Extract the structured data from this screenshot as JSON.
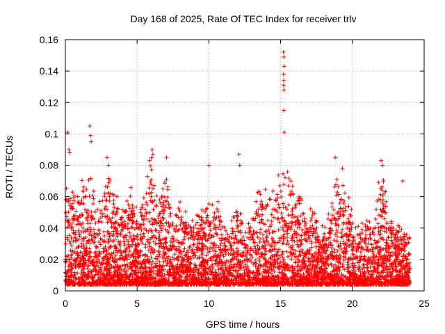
{
  "chart_data": {
    "type": "scatter",
    "title": "Day 168 of 2025, Rate Of TEC Index for receiver trlv",
    "xlabel": "GPS time / hours",
    "ylabel": "ROTI / TECUs",
    "xlim": [
      0,
      25
    ],
    "ylim": [
      0,
      0.16
    ],
    "xticks": [
      0,
      5,
      10,
      15,
      20,
      25
    ],
    "yticks": [
      0,
      0.02,
      0.04,
      0.06,
      0.08,
      0.1,
      0.12,
      0.14,
      0.16
    ],
    "ytick_labels": [
      "0",
      "0.02",
      "0.04",
      "0.06",
      "0.08",
      "0.1",
      "0.12",
      "0.14",
      "0.16"
    ],
    "grid": true,
    "marker": "+",
    "color": "#ff0000",
    "data_range_x": [
      0,
      24
    ],
    "notable_points": [
      {
        "x": 0.15,
        "y": 0.101
      },
      {
        "x": 0.25,
        "y": 0.09
      },
      {
        "x": 0.3,
        "y": 0.088
      },
      {
        "x": 1.7,
        "y": 0.105
      },
      {
        "x": 1.75,
        "y": 0.099
      },
      {
        "x": 1.8,
        "y": 0.095
      },
      {
        "x": 2.9,
        "y": 0.085
      },
      {
        "x": 3.0,
        "y": 0.08
      },
      {
        "x": 6.05,
        "y": 0.09
      },
      {
        "x": 6.1,
        "y": 0.087
      },
      {
        "x": 7.05,
        "y": 0.085
      },
      {
        "x": 10.0,
        "y": 0.08
      },
      {
        "x": 12.1,
        "y": 0.087
      },
      {
        "x": 12.15,
        "y": 0.08
      },
      {
        "x": 15.2,
        "y": 0.152
      },
      {
        "x": 15.22,
        "y": 0.149
      },
      {
        "x": 15.25,
        "y": 0.143
      },
      {
        "x": 15.2,
        "y": 0.138
      },
      {
        "x": 15.22,
        "y": 0.134
      },
      {
        "x": 15.2,
        "y": 0.131
      },
      {
        "x": 15.22,
        "y": 0.128
      },
      {
        "x": 15.22,
        "y": 0.115
      },
      {
        "x": 15.25,
        "y": 0.101
      },
      {
        "x": 18.8,
        "y": 0.085
      },
      {
        "x": 19.3,
        "y": 0.078
      },
      {
        "x": 22.0,
        "y": 0.083
      },
      {
        "x": 22.1,
        "y": 0.08
      },
      {
        "x": 23.5,
        "y": 0.07
      }
    ],
    "activity_envelope": {
      "hours": [
        0,
        0.5,
        1,
        1.5,
        2,
        2.5,
        3,
        3.5,
        4,
        4.5,
        5,
        5.5,
        6,
        6.5,
        7,
        7.5,
        8,
        8.5,
        9,
        9.5,
        10,
        10.5,
        11,
        11.5,
        12,
        12.5,
        13,
        13.5,
        14,
        14.5,
        15,
        15.5,
        16,
        16.5,
        17,
        17.5,
        18,
        18.5,
        19,
        19.5,
        20,
        20.5,
        21,
        21.5,
        22,
        22.5,
        23,
        23.5,
        24
      ],
      "typical_max": [
        0.06,
        0.055,
        0.06,
        0.062,
        0.06,
        0.045,
        0.075,
        0.05,
        0.05,
        0.065,
        0.045,
        0.055,
        0.08,
        0.045,
        0.07,
        0.04,
        0.05,
        0.04,
        0.04,
        0.05,
        0.06,
        0.05,
        0.04,
        0.03,
        0.06,
        0.035,
        0.04,
        0.06,
        0.06,
        0.055,
        0.07,
        0.065,
        0.06,
        0.05,
        0.045,
        0.04,
        0.035,
        0.05,
        0.07,
        0.06,
        0.04,
        0.035,
        0.04,
        0.04,
        0.07,
        0.045,
        0.04,
        0.03,
        0.03
      ]
    }
  }
}
